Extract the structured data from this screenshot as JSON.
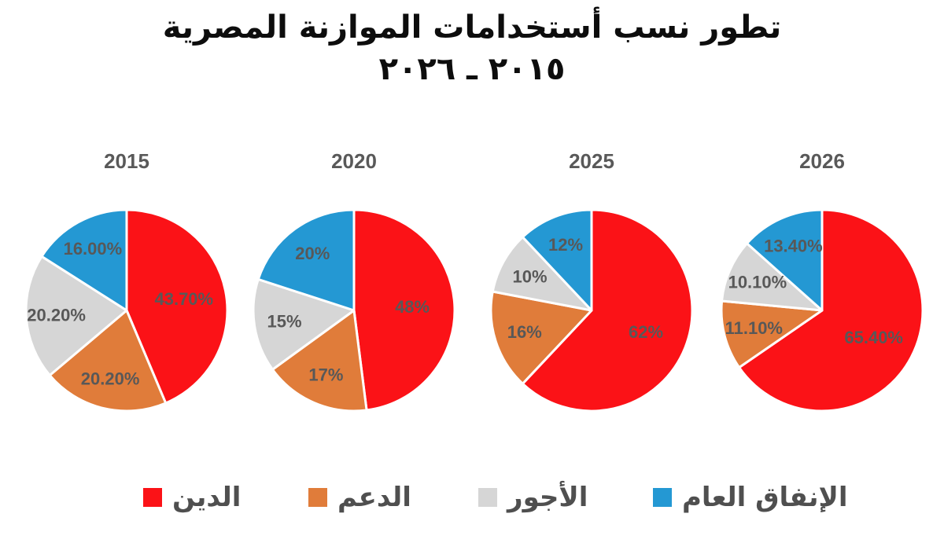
{
  "title": {
    "line1": "تطور نسب أستخدامات الموازنة المصرية",
    "line2": "٢٠١٥ ـ ٢٠٢٦"
  },
  "legend": {
    "items": [
      {
        "label": "الدين",
        "color": "#FB1217"
      },
      {
        "label": "الدعم",
        "color": "#E07C3A"
      },
      {
        "label": "الأجور",
        "color": "#D6D6D6"
      },
      {
        "label": "الإنفاق العام",
        "color": "#2498D3"
      }
    ]
  },
  "chart_data": {
    "type": "pie",
    "note": "four pie multiples, one per year, slices start at 12 o'clock clockwise",
    "categories": [
      "الدين",
      "الدعم",
      "الأجور",
      "الإنفاق العام"
    ],
    "colors": [
      "#FB1217",
      "#E07C3A",
      "#D6D6D6",
      "#2498D3"
    ],
    "legend_position": "bottom",
    "pies": [
      {
        "title": "2015",
        "values": [
          43.7,
          20.2,
          20.2,
          16.0
        ],
        "display": [
          "43.70%",
          "20.20%",
          "20.20%",
          "16.00%"
        ]
      },
      {
        "title": "2020",
        "values": [
          48,
          17,
          15,
          20
        ],
        "display": [
          "48%",
          "17%",
          "15%",
          "20%"
        ]
      },
      {
        "title": "2025",
        "values": [
          62,
          16,
          10,
          12
        ],
        "display": [
          "62%",
          "16%",
          "10%",
          "12%"
        ]
      },
      {
        "title": "2026",
        "values": [
          65.4,
          11.1,
          10.1,
          13.4
        ],
        "display": [
          "65.40%",
          "11.10%",
          "10.10%",
          "13.40%"
        ]
      }
    ]
  }
}
